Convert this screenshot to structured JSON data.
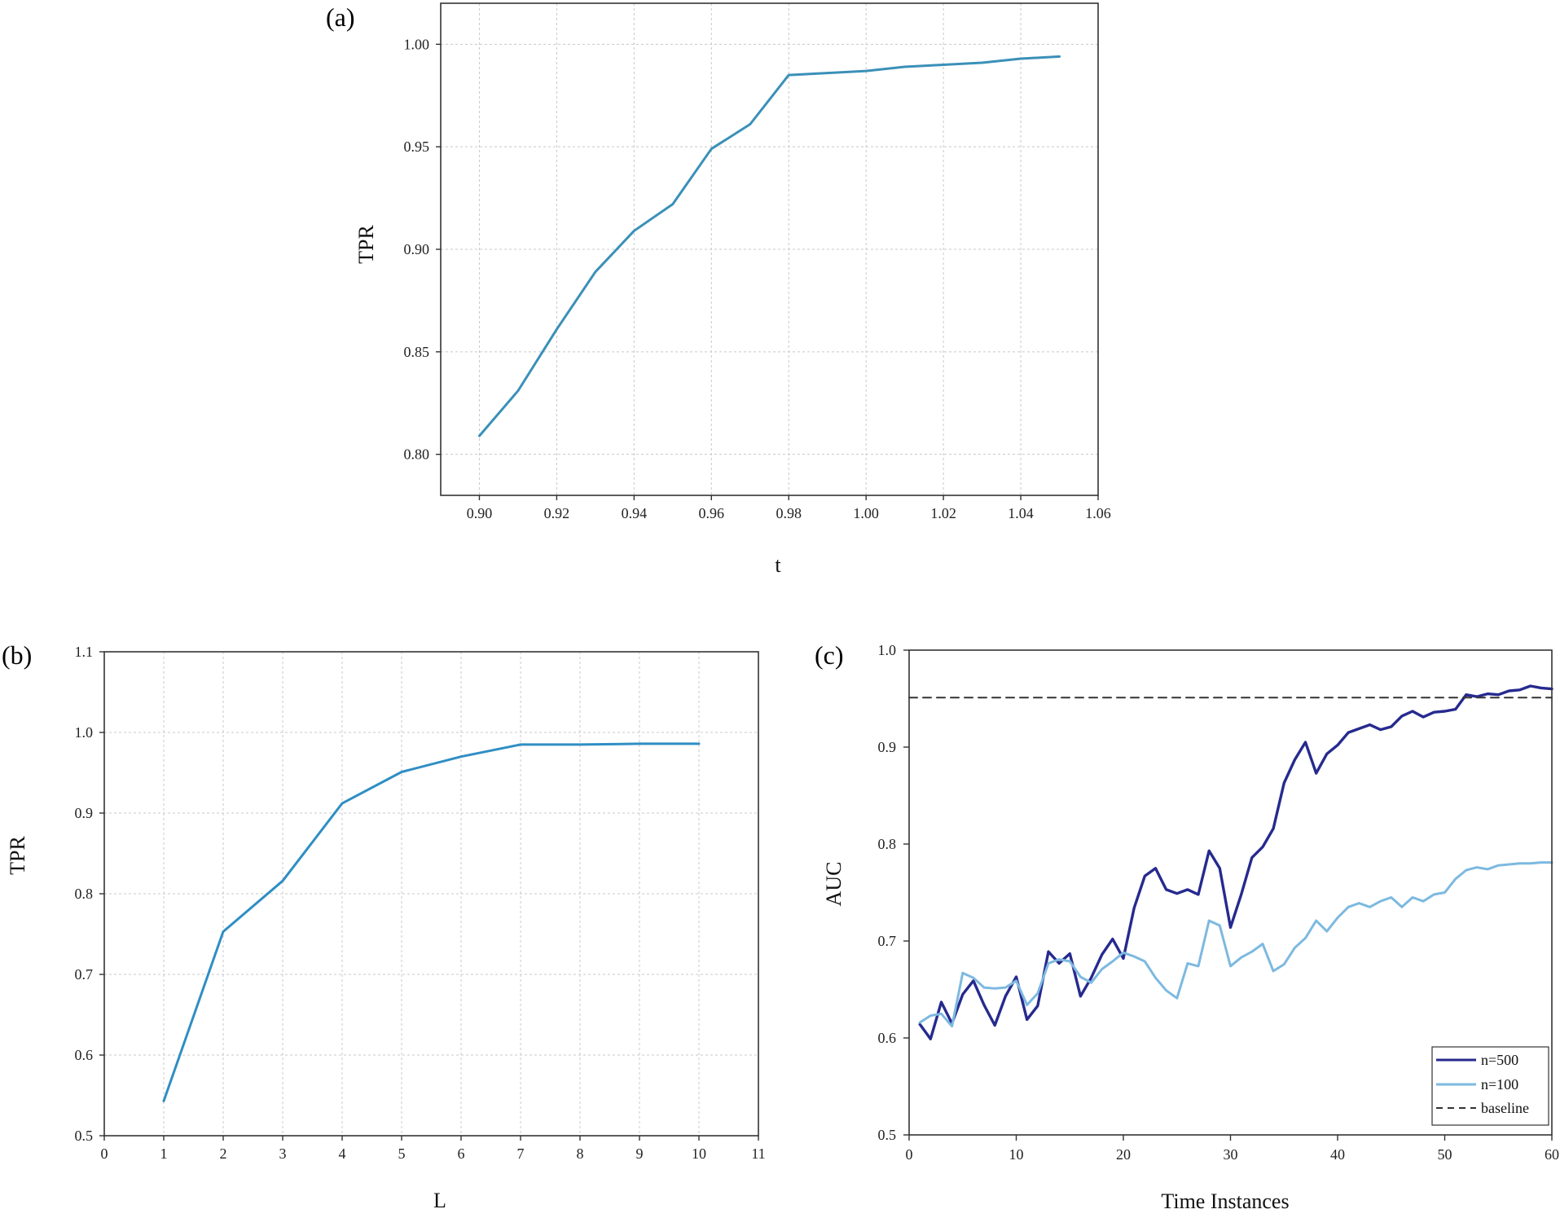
{
  "chart_data": [
    {
      "id": "a",
      "panel_label": "(a)",
      "type": "line",
      "title": "",
      "xlabel": "t",
      "ylabel": "TPR",
      "xlim": [
        0.89,
        1.06
      ],
      "ylim": [
        0.78,
        1.02
      ],
      "grid": true,
      "xticks": [
        0.9,
        0.92,
        0.94,
        0.96,
        0.98,
        1.0,
        1.02,
        1.04,
        1.06
      ],
      "xtick_labels": [
        "0.90",
        "0.92",
        "0.94",
        "0.96",
        "0.98",
        "1.00",
        "1.02",
        "1.04",
        "1.06"
      ],
      "yticks": [
        0.8,
        0.85,
        0.9,
        0.95,
        1.0
      ],
      "ytick_labels": [
        "0.80",
        "0.85",
        "0.90",
        "0.95",
        "1.00"
      ],
      "series": [
        {
          "name": "TPR",
          "color": "#3a90b8",
          "x": [
            0.9,
            0.91,
            0.92,
            0.93,
            0.94,
            0.95,
            0.96,
            0.97,
            0.98,
            0.99,
            1.0,
            1.01,
            1.02,
            1.03,
            1.04,
            1.05
          ],
          "y": [
            0.809,
            0.831,
            0.861,
            0.889,
            0.909,
            0.922,
            0.949,
            0.961,
            0.985,
            0.986,
            0.987,
            0.989,
            0.99,
            0.991,
            0.993,
            0.994
          ]
        }
      ]
    },
    {
      "id": "b",
      "panel_label": "(b)",
      "type": "line",
      "title": "",
      "xlabel": "L",
      "ylabel": "TPR",
      "xlim": [
        0,
        11
      ],
      "ylim": [
        0.5,
        1.1
      ],
      "grid": true,
      "xticks": [
        0,
        1,
        2,
        3,
        4,
        5,
        6,
        7,
        8,
        9,
        10,
        11
      ],
      "xtick_labels": [
        "0",
        "1",
        "2",
        "3",
        "4",
        "5",
        "6",
        "7",
        "8",
        "9",
        "10",
        "11"
      ],
      "yticks": [
        0.5,
        0.6,
        0.7,
        0.8,
        0.9,
        1.0,
        1.1
      ],
      "ytick_labels": [
        "0.5",
        "0.6",
        "0.7",
        "0.8",
        "0.9",
        "1.0",
        "1.1"
      ],
      "series": [
        {
          "name": "TPR",
          "color": "#2f8ec4",
          "x": [
            1,
            2,
            3,
            4,
            5,
            6,
            7,
            8,
            9,
            10
          ],
          "y": [
            0.543,
            0.753,
            0.816,
            0.912,
            0.951,
            0.97,
            0.985,
            0.985,
            0.986,
            0.986
          ]
        }
      ]
    },
    {
      "id": "c",
      "panel_label": "(c)",
      "type": "line",
      "title": "",
      "xlabel": "Time Instances",
      "ylabel": "AUC",
      "xlim": [
        0,
        60
      ],
      "ylim": [
        0.5,
        1.0
      ],
      "grid": false,
      "legend_position": "bottom-right",
      "xticks": [
        0,
        10,
        20,
        30,
        40,
        50,
        60
      ],
      "xtick_labels": [
        "0",
        "10",
        "20",
        "30",
        "40",
        "50",
        "60"
      ],
      "yticks": [
        0.5,
        0.6,
        0.7,
        0.8,
        0.9,
        1.0
      ],
      "ytick_labels": [
        "0.5",
        "0.6",
        "0.7",
        "0.8",
        "0.9",
        "1.0"
      ],
      "series": [
        {
          "name": "n=500",
          "color": "#262a8e",
          "style": "solid",
          "x": [
            1,
            2,
            3,
            4,
            5,
            6,
            7,
            8,
            9,
            10,
            11,
            12,
            13,
            14,
            15,
            16,
            17,
            18,
            19,
            20,
            21,
            22,
            23,
            24,
            25,
            26,
            27,
            28,
            29,
            30,
            31,
            32,
            33,
            34,
            35,
            36,
            37,
            38,
            39,
            40,
            41,
            42,
            43,
            44,
            45,
            46,
            47,
            48,
            49,
            50,
            51,
            52,
            53,
            54,
            55,
            56,
            57,
            58,
            59,
            60
          ],
          "y": [
            0.614,
            0.599,
            0.637,
            0.615,
            0.645,
            0.659,
            0.634,
            0.613,
            0.643,
            0.663,
            0.619,
            0.633,
            0.689,
            0.677,
            0.687,
            0.643,
            0.662,
            0.686,
            0.702,
            0.682,
            0.734,
            0.767,
            0.775,
            0.753,
            0.749,
            0.753,
            0.748,
            0.793,
            0.775,
            0.714,
            0.748,
            0.786,
            0.797,
            0.816,
            0.863,
            0.887,
            0.905,
            0.873,
            0.893,
            0.902,
            0.915,
            0.919,
            0.923,
            0.918,
            0.921,
            0.932,
            0.937,
            0.931,
            0.936,
            0.937,
            0.939,
            0.954,
            0.952,
            0.955,
            0.954,
            0.958,
            0.959,
            0.963,
            0.961,
            0.96
          ]
        },
        {
          "name": "n=100",
          "color": "#7db9e0",
          "style": "solid",
          "x": [
            1,
            2,
            3,
            4,
            5,
            6,
            7,
            8,
            9,
            10,
            11,
            12,
            13,
            14,
            15,
            16,
            17,
            18,
            19,
            20,
            21,
            22,
            23,
            24,
            25,
            26,
            27,
            28,
            29,
            30,
            31,
            32,
            33,
            34,
            35,
            36,
            37,
            38,
            39,
            40,
            41,
            42,
            43,
            44,
            45,
            46,
            47,
            48,
            49,
            50,
            51,
            52,
            53,
            54,
            55,
            56,
            57,
            58,
            59,
            60
          ],
          "y": [
            0.616,
            0.623,
            0.625,
            0.612,
            0.667,
            0.662,
            0.652,
            0.651,
            0.652,
            0.659,
            0.634,
            0.646,
            0.677,
            0.681,
            0.679,
            0.663,
            0.657,
            0.671,
            0.679,
            0.688,
            0.684,
            0.679,
            0.662,
            0.649,
            0.641,
            0.677,
            0.674,
            0.721,
            0.716,
            0.674,
            0.683,
            0.689,
            0.697,
            0.669,
            0.676,
            0.693,
            0.703,
            0.721,
            0.71,
            0.724,
            0.735,
            0.739,
            0.735,
            0.741,
            0.745,
            0.735,
            0.745,
            0.741,
            0.748,
            0.75,
            0.764,
            0.773,
            0.776,
            0.774,
            0.778,
            0.779,
            0.78,
            0.78,
            0.781,
            0.781
          ]
        },
        {
          "name": "baseline",
          "color": "#333333",
          "style": "dashed",
          "x": [
            0,
            60
          ],
          "y": [
            0.951,
            0.951
          ]
        }
      ]
    }
  ]
}
